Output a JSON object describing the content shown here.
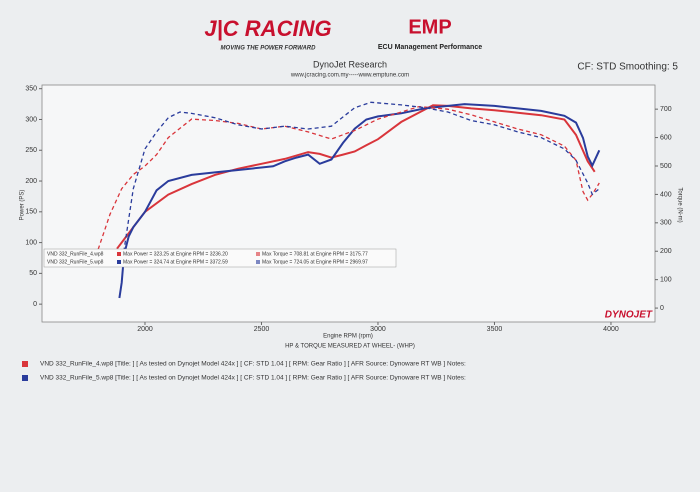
{
  "header": {
    "brand1": "J|C RACING",
    "brand1_tagline": "MOVING THE POWER FORWARD",
    "brand2": "EMP",
    "brand2_tagline": "ECU Management Performance",
    "title": "DynoJet Research",
    "urls": "www.jcracing.com.my-----www.emptune.com",
    "settings": "CF: STD Smoothing: 5"
  },
  "chart_data": {
    "type": "line",
    "y_label": "Power (PS)",
    "y2_label": "Torque (N-m)",
    "x_label": "Engine RPM (rpm)",
    "caption": "HP & TORQUE  MEASURED AT WHEEL- (WHP)",
    "logo": "DYNOJET",
    "xlim": [
      1558,
      4189
    ],
    "xticks": [
      2000,
      2500,
      3000,
      3500,
      4000
    ],
    "ylim": [
      -29,
      356
    ],
    "yticks": [
      0,
      50,
      100,
      150,
      200,
      250,
      300,
      350
    ],
    "y2lim": [
      -49,
      785
    ],
    "y2ticks": [
      0,
      100,
      200,
      300,
      400,
      500,
      600,
      700
    ],
    "series": [
      {
        "color": "#d9353b",
        "style": "solid",
        "x": [
          1880,
          1950,
          2000,
          2100,
          2200,
          2300,
          2400,
          2500,
          2600,
          2700,
          2750,
          2800,
          2850,
          2900,
          2950,
          3000,
          3100,
          3236,
          3300,
          3400,
          3500,
          3600,
          3700,
          3800,
          3850,
          3900,
          3930
        ],
        "values": [
          90,
          125,
          150,
          178,
          195,
          210,
          220,
          228,
          236,
          247,
          244,
          238,
          243,
          248,
          258,
          268,
          296,
          323,
          322,
          318,
          315,
          311,
          307,
          300,
          275,
          232,
          215
        ]
      },
      {
        "color": "#2a3c9c",
        "style": "solid",
        "x": [
          1890,
          1900,
          1910,
          1930,
          1950,
          2000,
          2050,
          2100,
          2200,
          2300,
          2400,
          2500,
          2550,
          2600,
          2650,
          2700,
          2750,
          2800,
          2850,
          2900,
          2950,
          3000,
          3100,
          3200,
          3372,
          3500,
          3600,
          3700,
          3800,
          3850,
          3880,
          3900,
          3920,
          3950
        ],
        "values": [
          10,
          35,
          80,
          110,
          125,
          150,
          185,
          200,
          210,
          214,
          218,
          222,
          224,
          232,
          238,
          243,
          228,
          235,
          262,
          285,
          300,
          305,
          310,
          318,
          325,
          322,
          318,
          314,
          306,
          295,
          270,
          240,
          225,
          250
        ]
      },
      {
        "color": "#d9353b",
        "style": "dashed",
        "axis": "y2",
        "x": [
          1780,
          1850,
          1900,
          1950,
          2000,
          2050,
          2100,
          2200,
          2300,
          2400,
          2500,
          2600,
          2700,
          2800,
          2900,
          3000,
          3100,
          3176,
          3300,
          3400,
          3500,
          3600,
          3700,
          3800,
          3850,
          3880,
          3900,
          3920,
          3950
        ],
        "values": [
          160,
          330,
          420,
          470,
          500,
          540,
          600,
          665,
          660,
          650,
          630,
          640,
          620,
          595,
          625,
          665,
          690,
          709,
          700,
          680,
          655,
          630,
          610,
          570,
          520,
          410,
          380,
          400,
          440
        ]
      },
      {
        "color": "#2a3c9c",
        "style": "dashed",
        "axis": "y2",
        "x": [
          1900,
          1950,
          2000,
          2050,
          2100,
          2150,
          2200,
          2300,
          2400,
          2500,
          2600,
          2700,
          2800,
          2900,
          2970,
          3100,
          3200,
          3300,
          3400,
          3500,
          3600,
          3700,
          3800,
          3850,
          3900,
          3920,
          3950
        ],
        "values": [
          150,
          420,
          560,
          620,
          670,
          690,
          685,
          670,
          645,
          630,
          640,
          630,
          640,
          705,
          724,
          715,
          705,
          690,
          660,
          645,
          620,
          600,
          560,
          520,
          440,
          400,
          420
        ]
      }
    ],
    "summary": [
      {
        "color": "#d9353b",
        "file": "VND 332_RunFile_4.wp8",
        "max_power": "Max Power = 323.25 at Engine RPM = 3236.20",
        "max_torque": "Max Torque = 708.81 at Engine RPM = 3175.77"
      },
      {
        "color": "#2a3c9c",
        "file": "VND 332_RunFile_5.wp8",
        "max_power": "Max Power = 324.74 at Engine RPM = 3372.59",
        "max_torque": "Max Torque = 724.05 at Engine RPM = 2969.97"
      }
    ]
  },
  "notes": [
    {
      "color": "#d9353b",
      "text": "VND 332_RunFile_4.wp8 [Title: ]  [ As tested on Dynojet Model 424x ] [ CF: STD 1.04 ] [ RPM: Gear Ratio ] [ AFR Source: Dynoware RT WB ] Notes:"
    },
    {
      "color": "#2a3c9c",
      "text": "VND 332_RunFile_5.wp8 [Title: ]  [ As tested on Dynojet Model 424x ] [ CF: STD 1.04 ] [ RPM: Gear Ratio ] [ AFR Source: Dynoware RT WB ] Notes:"
    }
  ]
}
